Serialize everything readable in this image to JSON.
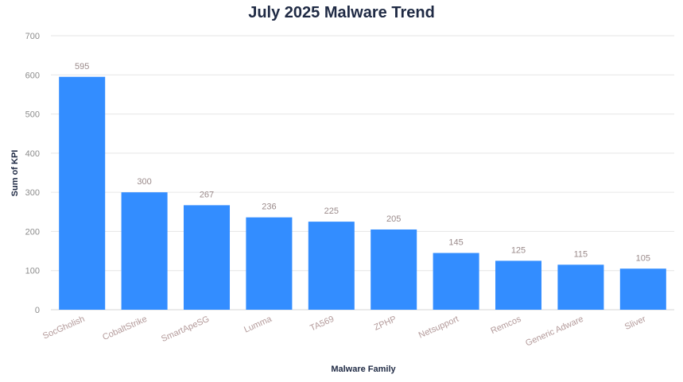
{
  "chart_data": {
    "type": "bar",
    "title": "July 2025 Malware Trend",
    "xlabel": "Malware Family",
    "ylabel": "Sum of KPI",
    "categories": [
      "SocGholish",
      "CobaltStrike",
      "SmartApeSG",
      "Lumma",
      "TA569",
      "ZPHP",
      "Netsupport",
      "Remcos",
      "Generic Adware",
      "Sliver"
    ],
    "values": [
      595,
      300,
      267,
      236,
      225,
      205,
      145,
      125,
      115,
      105
    ],
    "ylim": [
      0,
      700
    ],
    "yticks": [
      0,
      100,
      200,
      300,
      400,
      500,
      600,
      700
    ],
    "grid": true,
    "legend": "none",
    "colors": {
      "bar": "#338dff"
    }
  }
}
